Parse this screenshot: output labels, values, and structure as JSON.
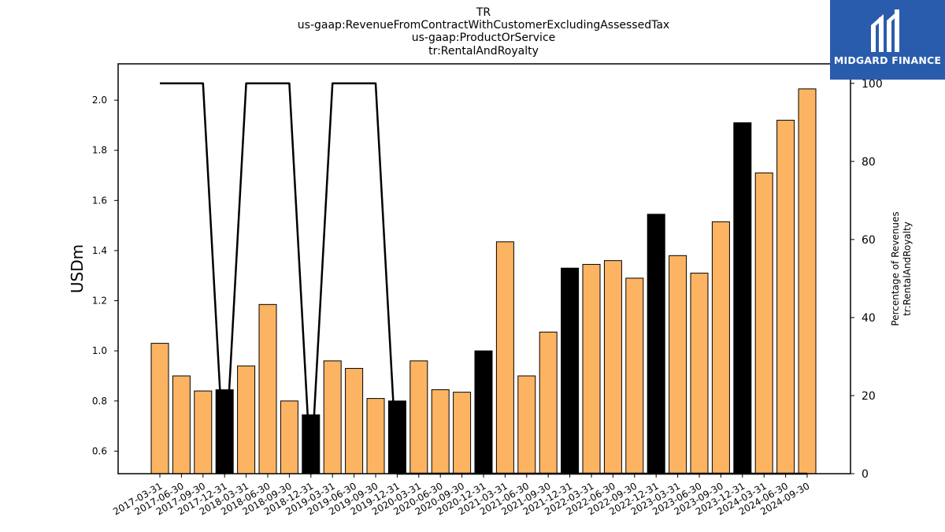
{
  "chart_data": {
    "type": "bar",
    "title_lines": [
      "TR",
      "us-gaap:RevenueFromContractWithCustomerExcludingAssessedTax",
      "us-gaap:ProductOrService",
      "tr:RentalAndRoyalty"
    ],
    "ylabel": "USDm",
    "ylabel_right_lines": [
      "Percentage of Revenues",
      "tr:RentalAndRoyalty"
    ],
    "categories": [
      "2017-03-31",
      "2017-06-30",
      "2017-09-30",
      "2017-12-31",
      "2018-03-31",
      "2018-06-30",
      "2018-09-30",
      "2018-12-31",
      "2019-03-31",
      "2019-06-30",
      "2019-09-30",
      "2019-12-31",
      "2020-03-31",
      "2020-06-30",
      "2020-09-30",
      "2020-12-31",
      "2021-03-31",
      "2021-06-30",
      "2021-09-30",
      "2021-12-31",
      "2022-03-31",
      "2022-06-30",
      "2022-09-30",
      "2022-12-31",
      "2023-03-31",
      "2023-06-30",
      "2023-09-30",
      "2023-12-31",
      "2024-03-31",
      "2024-06-30",
      "2024-09-30"
    ],
    "series": [
      {
        "values": [
          1.03,
          0.9,
          0.84,
          0.845,
          0.94,
          1.185,
          0.8,
          0.745,
          0.96,
          0.93,
          0.81,
          0.8,
          0.96,
          0.845,
          0.835,
          1.0,
          1.435,
          0.9,
          1.075,
          1.33,
          1.345,
          1.36,
          1.29,
          1.545,
          1.38,
          1.31,
          1.515,
          1.91,
          1.71,
          1.92,
          2.045
        ],
        "highlight": [
          false,
          false,
          false,
          true,
          false,
          false,
          false,
          true,
          false,
          false,
          false,
          true,
          false,
          false,
          false,
          true,
          false,
          false,
          false,
          true,
          false,
          false,
          false,
          true,
          false,
          false,
          false,
          true,
          false,
          false,
          false
        ],
        "axis": "left"
      },
      {
        "values": [
          100,
          100,
          100,
          0,
          100,
          100,
          100,
          0,
          100,
          100,
          100,
          0,
          0,
          0,
          0,
          0,
          0,
          0,
          0,
          0,
          0,
          0,
          0,
          0,
          0,
          0,
          0,
          0,
          0,
          0,
          0
        ],
        "axis": "right",
        "style": "line"
      }
    ],
    "ylim": [
      0.51,
      2.145
    ],
    "yticks": [
      0.6,
      0.8,
      1.0,
      1.2,
      1.4,
      1.6,
      1.8,
      2.0
    ],
    "ylim_right": [
      0,
      105
    ],
    "yticks_right": [
      0,
      20,
      40,
      60,
      80,
      100
    ],
    "grid": false,
    "colors": {
      "bar": "#fdb462",
      "bar_highlight": "#000000",
      "bar_edge": "#000000",
      "line": "#000000"
    }
  },
  "logo": {
    "text": "MIDGARD FINANCE",
    "background": "#2a5cad",
    "icon": "midgard-logo-icon"
  }
}
